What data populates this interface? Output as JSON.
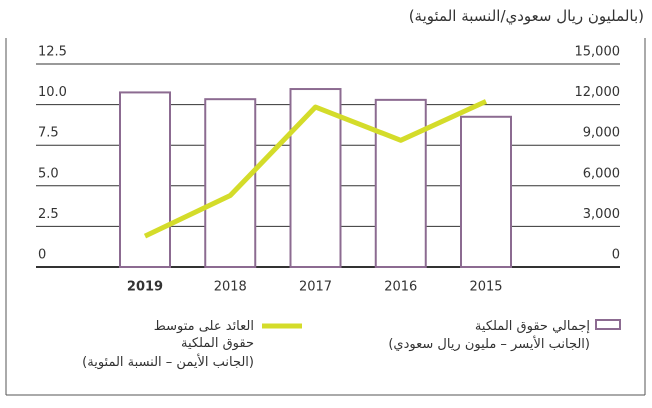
{
  "chart_data": {
    "type": "bar_line",
    "title": "(بالمليون ريال سعودي/النسبة المئوية)",
    "categories": [
      "2019",
      "2018",
      "2017",
      "2016",
      "2015"
    ],
    "highlight_index": 0,
    "series": [
      {
        "name": "إجمالي حقوق الملكية",
        "note": "(الجانب الأيسر – مليون ريال سعودي)",
        "type": "bar",
        "axis": "y2",
        "color": "#8c6b91",
        "values": [
          12900,
          12400,
          13150,
          12350,
          11100
        ]
      },
      {
        "name": "العائد على متوسط حقوق الملكية",
        "note": "(الجانب الأيمن – النسبة المئوية)",
        "type": "line",
        "axis": "y",
        "color": "#d4dc2a",
        "values": [
          1.9,
          4.4,
          9.85,
          7.8,
          10.2
        ]
      }
    ],
    "ylim": [
      0,
      12.5
    ],
    "yticks": [
      0,
      2.5,
      {
        "value": 5,
        "label": "5.0"
      },
      7.5,
      {
        "value": 10,
        "label": "10.0"
      },
      12.5
    ],
    "y2lim": [
      0,
      15000
    ],
    "y2ticks": [
      0,
      {
        "value": 3000,
        "label": "3,000"
      },
      {
        "value": 6000,
        "label": "6,000"
      },
      {
        "value": 9000,
        "label": "9,000"
      },
      {
        "value": 12000,
        "label": "12,000"
      },
      {
        "value": 15000,
        "label": "15,000"
      }
    ],
    "grid": true
  }
}
